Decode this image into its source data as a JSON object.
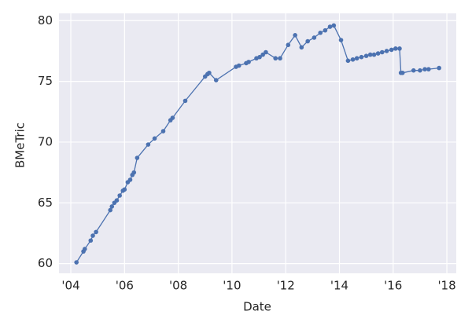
{
  "chart_data": {
    "type": "line",
    "x_label": "Date",
    "y_label": "BMeTric",
    "x": [
      2004.21,
      2004.47,
      2004.52,
      2004.74,
      2004.82,
      2004.94,
      2005.47,
      2005.53,
      2005.62,
      2005.71,
      2005.82,
      2005.94,
      2006.0,
      2006.12,
      2006.21,
      2006.29,
      2006.35,
      2006.47,
      2006.88,
      2007.12,
      2007.44,
      2007.71,
      2007.79,
      2008.26,
      2009.0,
      2009.09,
      2009.15,
      2009.41,
      2010.15,
      2010.26,
      2010.53,
      2010.62,
      2010.91,
      2011.03,
      2011.15,
      2011.26,
      2011.62,
      2011.79,
      2012.09,
      2012.35,
      2012.59,
      2012.82,
      2013.06,
      2013.29,
      2013.47,
      2013.65,
      2013.79,
      2014.06,
      2014.32,
      2014.5,
      2014.65,
      2014.82,
      2015.0,
      2015.15,
      2015.29,
      2015.44,
      2015.59,
      2015.76,
      2015.94,
      2016.09,
      2016.24,
      2016.29,
      2016.35,
      2016.76,
      2017.0,
      2017.18,
      2017.32,
      2017.71
    ],
    "series": [
      {
        "color": "#4c72b0",
        "values": [
          60.1,
          61.0,
          61.2,
          61.9,
          62.3,
          62.6,
          64.4,
          64.7,
          65.0,
          65.2,
          65.6,
          66.0,
          66.1,
          66.7,
          66.9,
          67.3,
          67.5,
          68.7,
          69.8,
          70.3,
          70.9,
          71.8,
          72.0,
          73.4,
          75.4,
          75.6,
          75.7,
          75.1,
          76.2,
          76.3,
          76.5,
          76.6,
          76.9,
          77.0,
          77.2,
          77.4,
          76.9,
          76.9,
          78.0,
          78.8,
          77.8,
          78.3,
          78.6,
          79.0,
          79.2,
          79.5,
          79.6,
          78.4,
          76.7,
          76.8,
          76.9,
          77.0,
          77.1,
          77.2,
          77.2,
          77.3,
          77.4,
          77.5,
          77.6,
          77.7,
          77.7,
          75.7,
          75.7,
          75.9,
          75.9,
          76.0,
          76.0,
          76.1
        ]
      }
    ],
    "xlim": [
      2003.56,
      2018.35
    ],
    "ylim": [
      59.2,
      80.6
    ],
    "xticks": [
      {
        "value": 2004,
        "label": "'04"
      },
      {
        "value": 2006,
        "label": "'06"
      },
      {
        "value": 2008,
        "label": "'08"
      },
      {
        "value": 2010,
        "label": "'10"
      },
      {
        "value": 2012,
        "label": "'12"
      },
      {
        "value": 2014,
        "label": "'14"
      },
      {
        "value": 2016,
        "label": "'16"
      },
      {
        "value": 2018,
        "label": "'18"
      }
    ],
    "yticks": [
      60,
      65,
      70,
      75,
      80
    ],
    "grid": true
  }
}
